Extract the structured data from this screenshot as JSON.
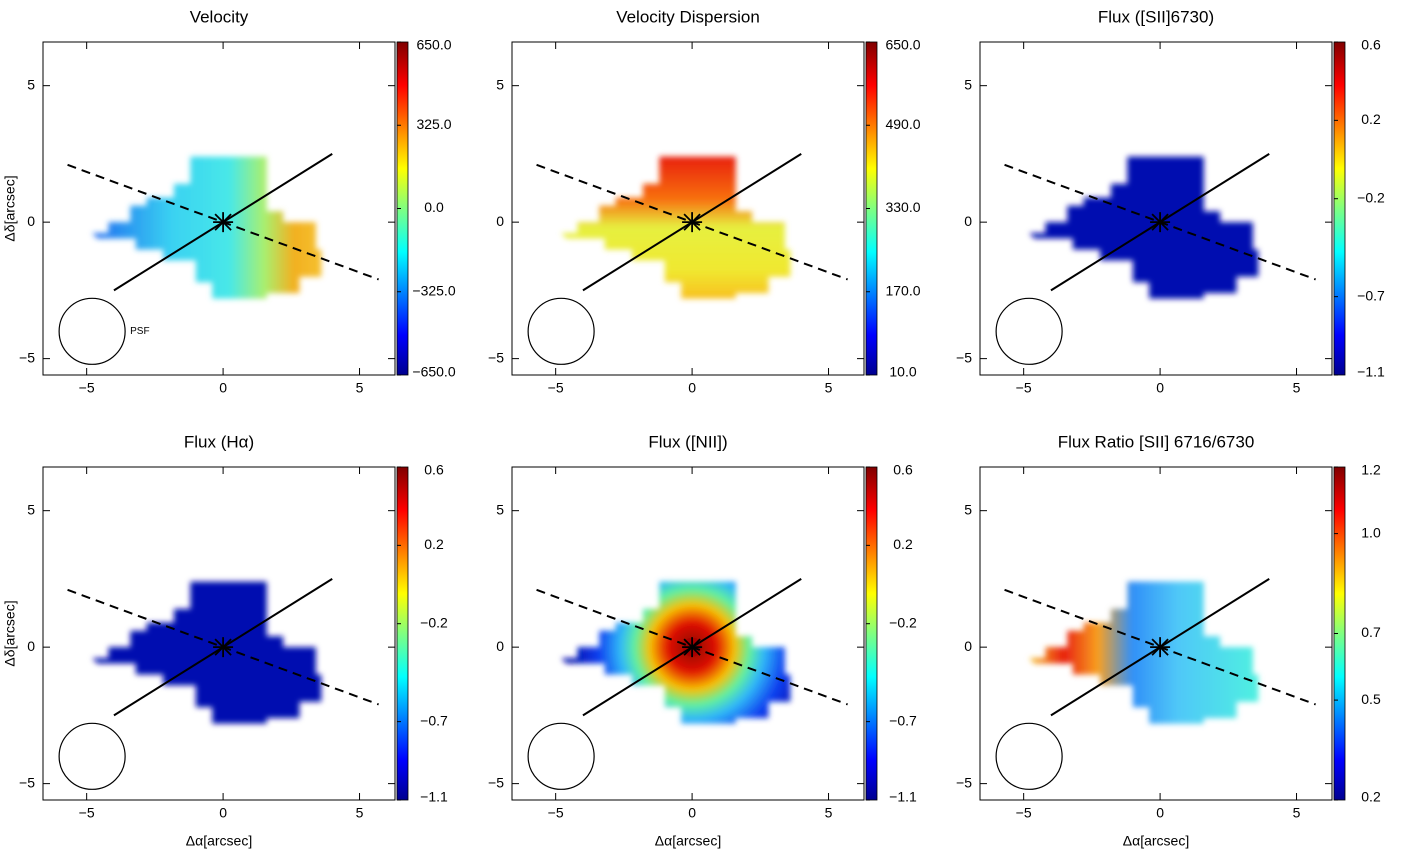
{
  "chart_data": [
    {
      "type": "heatmap",
      "title": "Velocity",
      "ylabel": "Δδ[arcsec]",
      "annotation": "PSF",
      "xlim": [
        -6.6,
        6.3
      ],
      "ylim": [
        -5.6,
        6.6
      ],
      "xticks": [
        {
          "value": -5,
          "label": "−5"
        },
        0,
        5
      ],
      "yticks": [
        {
          "value": -5,
          "label": "−5"
        },
        0,
        5
      ],
      "clim": [
        -650,
        650
      ],
      "cticks": [
        {
          "value": 650,
          "label": "650.0"
        },
        {
          "value": 325,
          "label": "325.0"
        },
        {
          "value": 0,
          "label": "0.0"
        },
        {
          "value": -325,
          "label": "−325.0"
        },
        {
          "value": -650,
          "label": "−650.0"
        }
      ]
    },
    {
      "type": "heatmap",
      "title": "Velocity Dispersion",
      "xlim": [
        -6.6,
        6.3
      ],
      "ylim": [
        -5.6,
        6.6
      ],
      "xticks": [
        {
          "value": -5,
          "label": "−5"
        },
        0,
        5
      ],
      "yticks": [
        {
          "value": -5,
          "label": "−5"
        },
        0,
        5
      ],
      "clim": [
        10,
        650
      ],
      "cticks": [
        {
          "value": 650,
          "label": "650.0"
        },
        {
          "value": 490,
          "label": "490.0"
        },
        {
          "value": 330,
          "label": "330.0"
        },
        {
          "value": 170,
          "label": "170.0"
        },
        {
          "value": 10,
          "label": "10.0"
        }
      ]
    },
    {
      "type": "heatmap",
      "title": "Flux ([SII]6730)",
      "xlim": [
        -6.6,
        6.3
      ],
      "ylim": [
        -5.6,
        6.6
      ],
      "xticks": [
        {
          "value": -5,
          "label": "−5"
        },
        0,
        5
      ],
      "yticks": [
        {
          "value": -5,
          "label": "−5"
        },
        0,
        5
      ],
      "clim": [
        -1.1,
        0.6
      ],
      "cticks": [
        0.6,
        0.2,
        {
          "value": -0.2,
          "label": "−0.2"
        },
        {
          "value": -0.7,
          "label": "−0.7"
        },
        {
          "value": -1.1,
          "label": "−1.1"
        }
      ]
    },
    {
      "type": "heatmap",
      "title": "Flux (Hα)",
      "xlabel": "Δα[arcsec]",
      "ylabel": "Δδ[arcsec]",
      "xlim": [
        -6.6,
        6.3
      ],
      "ylim": [
        -5.6,
        6.6
      ],
      "xticks": [
        {
          "value": -5,
          "label": "−5"
        },
        0,
        5
      ],
      "yticks": [
        {
          "value": -5,
          "label": "−5"
        },
        0,
        5
      ],
      "clim": [
        -1.1,
        0.6
      ],
      "cticks": [
        0.6,
        0.2,
        {
          "value": -0.2,
          "label": "−0.2"
        },
        {
          "value": -0.7,
          "label": "−0.7"
        },
        {
          "value": -1.1,
          "label": "−1.1"
        }
      ]
    },
    {
      "type": "heatmap",
      "title": "Flux ([NII])",
      "xlabel": "Δα[arcsec]",
      "xlim": [
        -6.6,
        6.3
      ],
      "ylim": [
        -5.6,
        6.6
      ],
      "xticks": [
        {
          "value": -5,
          "label": "−5"
        },
        0,
        5
      ],
      "yticks": [
        {
          "value": -5,
          "label": "−5"
        },
        0,
        5
      ],
      "clim": [
        -1.1,
        0.6
      ],
      "cticks": [
        0.6,
        0.2,
        {
          "value": -0.2,
          "label": "−0.2"
        },
        {
          "value": -0.7,
          "label": "−0.7"
        },
        {
          "value": -1.1,
          "label": "−1.1"
        }
      ]
    },
    {
      "type": "heatmap",
      "title": "Flux Ratio [SII] 6716/6730",
      "xlabel": "Δα[arcsec]",
      "xlim": [
        -6.6,
        6.3
      ],
      "ylim": [
        -5.6,
        6.6
      ],
      "xticks": [
        {
          "value": -5,
          "label": "−5"
        },
        0,
        5
      ],
      "yticks": [
        {
          "value": -5,
          "label": "−5"
        },
        0,
        5
      ],
      "clim": [
        0.2,
        1.2
      ],
      "cticks": [
        1.2,
        {
          "value": 1.0,
          "label": "1.0"
        },
        0.7,
        0.5,
        0.2
      ]
    }
  ]
}
